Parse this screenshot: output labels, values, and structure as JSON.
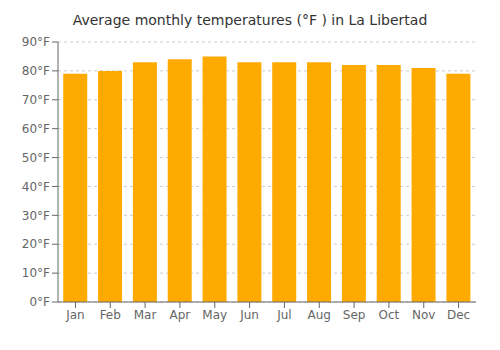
{
  "chart_data": {
    "type": "bar",
    "title": "Average monthly temperatures (°F ) in La Libertad",
    "categories": [
      "Jan",
      "Feb",
      "Mar",
      "Apr",
      "May",
      "Jun",
      "Jul",
      "Aug",
      "Sep",
      "Oct",
      "Nov",
      "Dec"
    ],
    "values": [
      79,
      80,
      83,
      84,
      85,
      83,
      83,
      83,
      82,
      82,
      81,
      79
    ],
    "color": "#FFAA00",
    "ylim": [
      0,
      90
    ],
    "yticks": [
      {
        "value": 0,
        "label": "0°F"
      },
      {
        "value": 10,
        "label": "10°F"
      },
      {
        "value": 20,
        "label": "20°F"
      },
      {
        "value": 30,
        "label": "30°F"
      },
      {
        "value": 40,
        "label": "40°F"
      },
      {
        "value": 50,
        "label": "50°F"
      },
      {
        "value": 60,
        "label": "60°F"
      },
      {
        "value": 70,
        "label": "70°F"
      },
      {
        "value": 80,
        "label": "80°F"
      },
      {
        "value": 90,
        "label": "90°F"
      }
    ],
    "grid": true
  }
}
